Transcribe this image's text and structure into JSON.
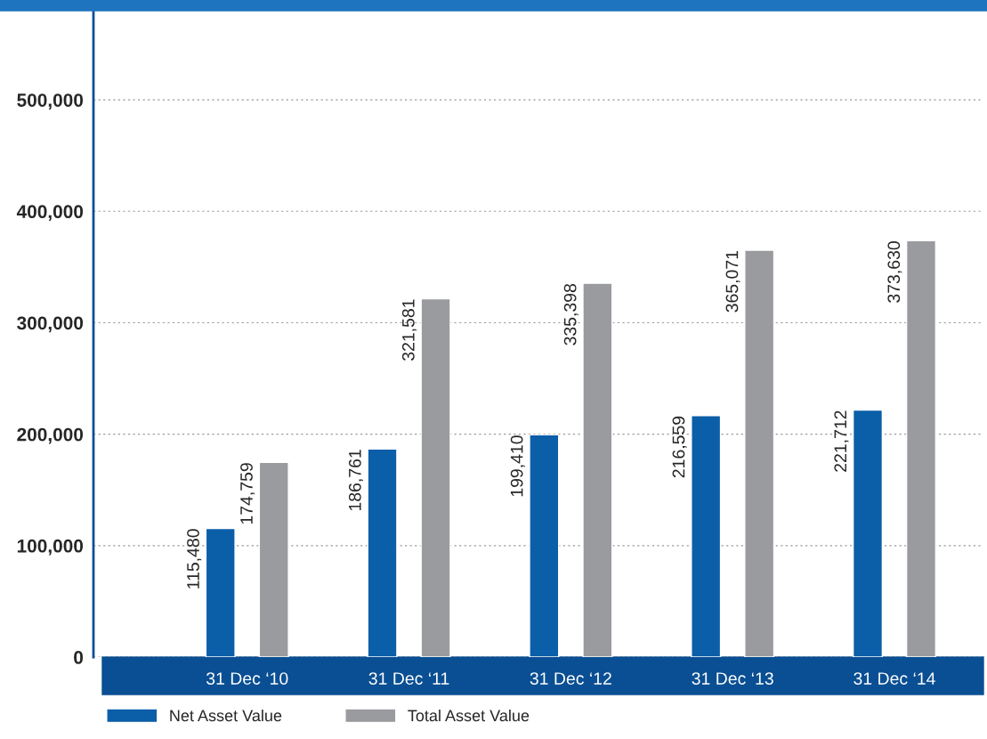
{
  "chart_data": {
    "type": "bar",
    "categories": [
      "31 Dec ‘10",
      "31 Dec ‘11",
      "31 Dec ‘12",
      "31 Dec ‘13",
      "31 Dec ‘14"
    ],
    "series": [
      {
        "name": "Net Asset Value",
        "color": "#0b5ea8",
        "values": [
          115480,
          186761,
          199410,
          216559,
          221712
        ],
        "value_labels": [
          "115,480",
          "186,761",
          "199,410",
          "216,559",
          "221,712"
        ]
      },
      {
        "name": "Total Asset Value",
        "color": "#9a9b9e",
        "values": [
          174759,
          321581,
          335398,
          365071,
          373630
        ],
        "value_labels": [
          "174,759",
          "321,581",
          "335,398",
          "365,071",
          "373,630"
        ]
      }
    ],
    "ylim": [
      0,
      580000
    ],
    "yticks": [
      0,
      {
        "value": 100000,
        "label": "100,000"
      },
      {
        "value": 200000,
        "label": "200,000"
      },
      {
        "value": 300000,
        "label": "300,000"
      },
      {
        "value": 400000,
        "label": "400,000"
      },
      {
        "value": 500000,
        "label": "500,000"
      }
    ],
    "grid": "y",
    "legend": "bottom left"
  }
}
